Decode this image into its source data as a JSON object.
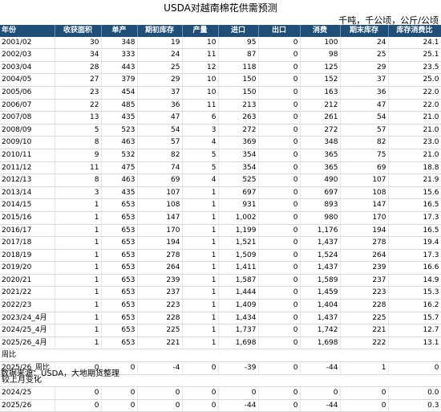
{
  "title": "USDA对越南棉花供需预测",
  "units": "千吨，千公顷，公斤/公顷",
  "headers": [
    "年份",
    "收获面积",
    "单产",
    "期初库存",
    "产量",
    "进口",
    "出口",
    "消费",
    "期末库存",
    "库存消费比"
  ],
  "rows": [
    [
      "2001/02",
      "30",
      "348",
      "19",
      "10",
      "95",
      "0",
      "100",
      "24",
      "24.1"
    ],
    [
      "2002/03",
      "34",
      "333",
      "24",
      "11",
      "87",
      "0",
      "98",
      "25",
      "25.1"
    ],
    [
      "2003/04",
      "28",
      "443",
      "25",
      "12",
      "118",
      "0",
      "125",
      "29",
      "23.5"
    ],
    [
      "2004/05",
      "27",
      "379",
      "29",
      "10",
      "150",
      "0",
      "152",
      "37",
      "25.0"
    ],
    [
      "2005/06",
      "23",
      "454",
      "37",
      "10",
      "150",
      "0",
      "163",
      "36",
      "22.0"
    ],
    [
      "2006/07",
      "22",
      "485",
      "36",
      "11",
      "213",
      "0",
      "212",
      "47",
      "22.0"
    ],
    [
      "2007/08",
      "13",
      "435",
      "47",
      "6",
      "263",
      "0",
      "261",
      "54",
      "21.0"
    ],
    [
      "2008/09",
      "5",
      "523",
      "54",
      "3",
      "272",
      "0",
      "272",
      "57",
      "21.0"
    ],
    [
      "2009/10",
      "8",
      "463",
      "57",
      "4",
      "369",
      "0",
      "348",
      "82",
      "23.0"
    ],
    [
      "2010/11",
      "9",
      "532",
      "82",
      "5",
      "354",
      "0",
      "365",
      "75",
      "21.0"
    ],
    [
      "2011/12",
      "11",
      "475",
      "74",
      "5",
      "354",
      "0",
      "365",
      "69",
      "18.8"
    ],
    [
      "2012/13",
      "8",
      "463",
      "69",
      "4",
      "525",
      "0",
      "490",
      "107",
      "21.9"
    ],
    [
      "2013/14",
      "3",
      "435",
      "107",
      "1",
      "697",
      "0",
      "697",
      "108",
      "15.6"
    ],
    [
      "2014/15",
      "1",
      "653",
      "108",
      "1",
      "931",
      "0",
      "893",
      "147",
      "16.5"
    ],
    [
      "2015/16",
      "1",
      "653",
      "147",
      "1",
      "1,002",
      "0",
      "980",
      "170",
      "17.3"
    ],
    [
      "2016/17",
      "1",
      "653",
      "170",
      "1",
      "1,199",
      "0",
      "1,176",
      "194",
      "16.5"
    ],
    [
      "2017/18",
      "1",
      "653",
      "194",
      "1",
      "1,521",
      "0",
      "1,437",
      "278",
      "19.4"
    ],
    [
      "2018/19",
      "1",
      "653",
      "278",
      "1",
      "1,509",
      "0",
      "1,524",
      "264",
      "17.3"
    ],
    [
      "2019/20",
      "1",
      "653",
      "264",
      "1",
      "1,411",
      "0",
      "1,437",
      "239",
      "16.6"
    ],
    [
      "2020/21",
      "1",
      "653",
      "239",
      "1",
      "1,587",
      "0",
      "1,589",
      "237",
      "14.9"
    ],
    [
      "2021/22",
      "1",
      "653",
      "237",
      "1",
      "1,444",
      "0",
      "1,459",
      "223",
      "15.3"
    ],
    [
      "2022/23",
      "1",
      "653",
      "223",
      "1",
      "1,409",
      "0",
      "1,404",
      "228",
      "16.2"
    ],
    [
      "2023/24_4月",
      "1",
      "653",
      "228",
      "1",
      "1,434",
      "0",
      "1,437",
      "225",
      "15.7"
    ],
    [
      "2024/25_4月",
      "1",
      "653",
      "225",
      "1",
      "1,737",
      "0",
      "1,742",
      "221",
      "12.7"
    ],
    [
      "2025/26_4月",
      "1",
      "653",
      "221",
      "1",
      "1,698",
      "0",
      "1,698",
      "222",
      "13.1"
    ]
  ],
  "weekly_label": "周比",
  "weekly_rows": [
    [
      "2025/26_周比",
      "0",
      "0",
      "-4",
      "0",
      "-39",
      "0",
      "-44",
      "1",
      "0"
    ]
  ],
  "monthly_label": "较上月变化",
  "monthly_rows": [
    [
      "2024/25",
      "0",
      "0",
      "0",
      "0",
      "0",
      "0",
      "0",
      "0",
      "0.0"
    ],
    [
      "2025/26",
      "0",
      "0",
      "0",
      "0",
      "-44",
      "0",
      "-44",
      "0",
      "0.3"
    ]
  ],
  "source": "数据来源：USDA，大地期货整理"
}
